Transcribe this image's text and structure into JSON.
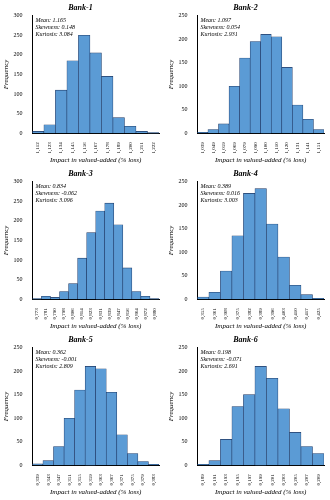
{
  "chart_data": [
    {
      "type": "bar",
      "title": "Bank-1",
      "categories": [
        "1,112",
        "1,123",
        "1,134",
        "1,145",
        "1,156",
        "1,167",
        "1,178",
        "1,189",
        "1,200",
        "1,211",
        "1,222"
      ],
      "values": [
        5,
        22,
        110,
        185,
        250,
        205,
        145,
        40,
        18,
        5,
        2
      ],
      "color": "#5b9bd5",
      "ylim": [
        0,
        300
      ],
      "yticks": [
        0,
        50,
        100,
        150,
        200,
        250,
        300
      ],
      "grid": false,
      "xlabel": "Impact in valued-added (% loss)",
      "ylabel": "Frequency",
      "annotations": [
        "Mean: 1.165",
        "Skewness: 0.148",
        "Kurtosis: 3.084"
      ]
    },
    {
      "type": "bar",
      "title": "Bank-2",
      "categories": [
        "1,039",
        "1,049",
        "1,059",
        "1,069",
        "1,079",
        "1,090",
        "1,100",
        "1,110",
        "1,120",
        "1,131",
        "1,141",
        "1,151"
      ],
      "values": [
        2,
        8,
        20,
        100,
        160,
        195,
        210,
        205,
        140,
        60,
        30,
        8
      ],
      "color": "#5b9bd5",
      "ylim": [
        0,
        250
      ],
      "yticks": [
        0,
        50,
        100,
        150,
        200,
        250
      ],
      "grid": false,
      "xlabel": "Impact in valued-added (% loss)",
      "ylabel": "Frequency",
      "annotations": [
        "Mean: 1.097",
        "Skewness: 0.054",
        "Kurtosis: 2.931"
      ]
    },
    {
      "type": "bar",
      "title": "Bank-3",
      "categories": [
        "0,773",
        "0,781",
        "0,790",
        "0,798",
        "0,806",
        "0,814",
        "0,823",
        "0,831",
        "0,839",
        "0,847",
        "0,856",
        "0,864",
        "0,872",
        "0,880"
      ],
      "values": [
        2,
        8,
        5,
        20,
        40,
        105,
        170,
        225,
        245,
        190,
        80,
        20,
        8,
        2
      ],
      "color": "#5b9bd5",
      "ylim": [
        0,
        300
      ],
      "yticks": [
        0,
        50,
        100,
        150,
        200,
        250,
        300
      ],
      "grid": false,
      "xlabel": "Impact in valued-added (% loss)",
      "ylabel": "Frequency",
      "annotations": [
        "Mean: 0.834",
        "Skewness: -0.062",
        "Kurtosis: 3.096"
      ]
    },
    {
      "type": "bar",
      "title": "Bank-4",
      "categories": [
        "0,355",
        "0,361",
        "0,368",
        "0,375",
        "0,382",
        "0,389",
        "0,396",
        "0,403",
        "0,410",
        "0,417",
        "0,425"
      ],
      "values": [
        5,
        15,
        60,
        135,
        225,
        235,
        160,
        90,
        30,
        10,
        2
      ],
      "color": "#5b9bd5",
      "ylim": [
        0,
        250
      ],
      "yticks": [
        0,
        50,
        100,
        150,
        200,
        250
      ],
      "grid": false,
      "xlabel": "Impact in valued-added (% loss)",
      "ylabel": "Frequency",
      "annotations": [
        "Mean: 0.389",
        "Skewness: 0.016",
        "Kurtosis: 3.003"
      ]
    },
    {
      "type": "bar",
      "title": "Bank-5",
      "categories": [
        "0,339",
        "0,343",
        "0,347",
        "0,351",
        "0,355",
        "0,359",
        "0,363",
        "0,367",
        "0,371",
        "0,375",
        "0,379",
        "0,383"
      ],
      "values": [
        3,
        10,
        40,
        100,
        160,
        210,
        205,
        155,
        65,
        25,
        8,
        2
      ],
      "color": "#5b9bd5",
      "ylim": [
        0,
        250
      ],
      "yticks": [
        0,
        50,
        100,
        150,
        200,
        250
      ],
      "grid": false,
      "xlabel": "Impact in valued-added (% loss)",
      "ylabel": "Frequency",
      "annotations": [
        "Mean: 0.362",
        "Skewness: -0.001",
        "Kurtosis: 2.809"
      ]
    },
    {
      "type": "bar",
      "title": "Bank-6",
      "categories": [
        "0,189",
        "0,191",
        "0,193",
        "0,195",
        "0,197",
        "0,199",
        "0,201",
        "0,203",
        "0,205",
        "0,207",
        "0,209"
      ],
      "values": [
        2,
        10,
        55,
        125,
        150,
        210,
        185,
        120,
        70,
        40,
        25
      ],
      "color": "#5b9bd5",
      "ylim": [
        0,
        250
      ],
      "yticks": [
        0,
        50,
        100,
        150,
        200,
        250
      ],
      "grid": false,
      "xlabel": "Impact in valued-added (% loss)",
      "ylabel": "Frequency",
      "annotations": [
        "Mean: 0.198",
        "Skewness: -0.071",
        "Kurtosis: 2.691"
      ]
    }
  ]
}
